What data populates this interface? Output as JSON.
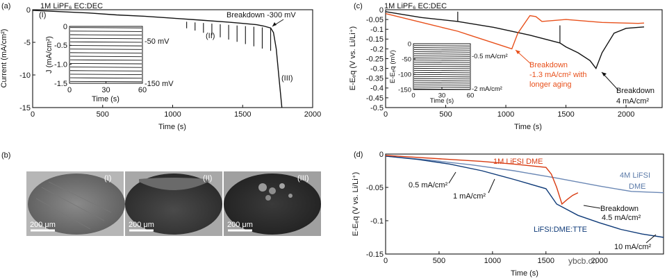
{
  "figure": {
    "watermark": "ybcb.cn",
    "colors": {
      "black": "#111111",
      "orange": "#e8501b",
      "red": "#d83a10",
      "light_blue": "#6b88b5",
      "navy": "#0e3a78"
    }
  },
  "chart_data": [
    {
      "id": "a",
      "type": "line",
      "panel_label": "(a)",
      "electrolyte_label": "1M LiPF₆ EC:DEC",
      "xlabel": "Time (s)",
      "ylabel": "Current (mA/cm²)",
      "xlim": [
        0,
        2000
      ],
      "ylim": [
        -15,
        0
      ],
      "xticks": [
        0,
        500,
        1000,
        1500,
        2000
      ],
      "yticks": [
        0,
        -5,
        -10,
        -15
      ],
      "annotations": [
        "(I)",
        "(II)",
        "(III)",
        "Breakdown -300 mV"
      ],
      "series": [
        {
          "name": "current",
          "color": "#111111",
          "x": [
            0,
            200,
            400,
            600,
            800,
            1000,
            1200,
            1400,
            1500,
            1600,
            1650,
            1700,
            1720,
            1740,
            1760,
            1780
          ],
          "y": [
            -0.1,
            -0.3,
            -0.5,
            -0.8,
            -1.0,
            -1.3,
            -1.6,
            -1.9,
            -2.1,
            -2.3,
            -2.5,
            -2.8,
            -3.5,
            -6.0,
            -10.5,
            -15.0
          ]
        }
      ],
      "inset": {
        "xlabel": "Time (s)",
        "ylabel": "J (mA/cm²)",
        "xlim": [
          0,
          60
        ],
        "ylim": [
          -1.5,
          0
        ],
        "xticks": [
          0,
          30,
          60
        ],
        "yticks": [
          0,
          -0.5,
          -1.0,
          -1.5
        ],
        "labels": [
          "-50 mV",
          "-150 mV"
        ],
        "level_count": 16,
        "level_min": -1.45,
        "level_max": -0.03
      }
    },
    {
      "id": "c",
      "type": "line",
      "panel_label": "(c)",
      "electrolyte_label": "1M LiPF₆ EC:DEC",
      "xlabel": "Time (s)",
      "ylabel": "E-Eₑq (V vs. Li/Li⁺)",
      "xlim": [
        0,
        2300
      ],
      "ylim": [
        -0.5,
        0
      ],
      "xticks": [
        0,
        500,
        1000,
        1500,
        2000
      ],
      "yticks": [
        0,
        -0.05,
        -0.1,
        -0.15,
        -0.2,
        -0.25,
        -0.3,
        -0.35,
        -0.4,
        -0.45,
        -0.5
      ],
      "annotations": [
        "Breakdown",
        "-1.3 mA/cm² with",
        "longer aging",
        "Breakdown",
        "4 mA/cm²"
      ],
      "series": [
        {
          "name": "black",
          "color": "#111111",
          "x": [
            0,
            300,
            600,
            900,
            1200,
            1450,
            1500,
            1600,
            1700,
            1750,
            1800,
            1900,
            2000,
            2100,
            2150
          ],
          "y": [
            -0.01,
            -0.04,
            -0.06,
            -0.09,
            -0.13,
            -0.17,
            -0.19,
            -0.22,
            -0.26,
            -0.3,
            -0.22,
            -0.12,
            -0.095,
            -0.09,
            -0.088
          ]
        },
        {
          "name": "orange",
          "color": "#e8501b",
          "x": [
            0,
            200,
            400,
            600,
            700,
            800,
            900,
            1000,
            1050,
            1100,
            1200,
            1250,
            1300,
            1500,
            1800,
            2100,
            2150
          ],
          "y": [
            -0.02,
            -0.05,
            -0.08,
            -0.11,
            -0.13,
            -0.15,
            -0.17,
            -0.19,
            -0.2,
            -0.12,
            -0.03,
            -0.035,
            -0.06,
            -0.05,
            -0.065,
            -0.07,
            -0.068
          ]
        }
      ],
      "inset": {
        "xlabel": "Time (s)",
        "ylabel": "E-Eₑq (mV)",
        "xlim": [
          0,
          60
        ],
        "ylim": [
          -150,
          0
        ],
        "xticks": [
          0,
          30,
          60
        ],
        "yticks": [
          0,
          -50,
          -100,
          -150
        ],
        "labels": [
          "-0.5 mA/cm²",
          "-2 mA/cm²"
        ],
        "level_count": 22,
        "level_min": -148,
        "level_max": -6
      }
    },
    {
      "id": "d",
      "type": "line",
      "panel_label": "(d)",
      "xlabel": "Time (s)",
      "ylabel": "E-Eₑq (V vs. Li/Li⁺)",
      "xlim": [
        0,
        2600
      ],
      "ylim": [
        -0.15,
        0
      ],
      "xticks": [
        0,
        500,
        1000,
        1500,
        2000
      ],
      "yticks": [
        0,
        -0.05,
        -0.1,
        -0.15
      ],
      "annotations": [
        "1M LiFSI DME",
        "4M LiFSI",
        "DME",
        "0.5 mA/cm²",
        "1 mA/cm²",
        "Breakdown",
        "4.5 mA/cm²",
        "LiFSI:DME:TTE",
        "10 mA/cm²"
      ],
      "series": [
        {
          "name": "1M LiFSI DME",
          "color": "#d83a10",
          "x": [
            0,
            300,
            600,
            900,
            1200,
            1500,
            1550,
            1600,
            1650,
            1700,
            1750,
            1800
          ],
          "y": [
            -0.002,
            -0.005,
            -0.008,
            -0.011,
            -0.015,
            -0.02,
            -0.03,
            -0.05,
            -0.075,
            -0.068,
            -0.062,
            -0.058
          ]
        },
        {
          "name": "4M LiFSI DME",
          "color": "#6b88b5",
          "x": [
            0,
            400,
            800,
            1200,
            1600,
            2000,
            2300,
            2600
          ],
          "y": [
            -0.003,
            -0.009,
            -0.016,
            -0.025,
            -0.036,
            -0.048,
            -0.056,
            -0.058
          ]
        },
        {
          "name": "LiFSI:DME:TTE",
          "color": "#0e3a78",
          "x": [
            0,
            300,
            600,
            900,
            1200,
            1500,
            1600,
            1800,
            2000,
            2200,
            2400,
            2600
          ],
          "y": [
            -0.003,
            -0.008,
            -0.015,
            -0.025,
            -0.038,
            -0.052,
            -0.075,
            -0.092,
            -0.103,
            -0.113,
            -0.12,
            -0.125
          ]
        }
      ]
    }
  ],
  "panel_b": {
    "panel_label": "(b)",
    "images": [
      {
        "label": "(I)",
        "scale": "200 μm"
      },
      {
        "label": "(II)",
        "scale": "200 μm"
      },
      {
        "label": "(III)",
        "scale": "200 μm"
      }
    ]
  }
}
